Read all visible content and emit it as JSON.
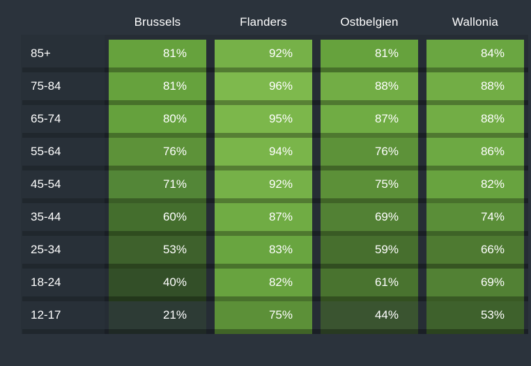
{
  "chart_data": {
    "type": "heatmap",
    "columns": [
      "Brussels",
      "Flanders",
      "Ostbelgien",
      "Wallonia"
    ],
    "categories": [
      "85+",
      "75-84",
      "65-74",
      "55-64",
      "45-54",
      "35-44",
      "25-34",
      "18-24",
      "12-17"
    ],
    "unit": "%",
    "series": [
      {
        "name": "Brussels",
        "values": [
          81,
          81,
          80,
          76,
          71,
          60,
          53,
          40,
          21
        ]
      },
      {
        "name": "Flanders",
        "values": [
          92,
          96,
          95,
          94,
          92,
          87,
          83,
          82,
          75
        ]
      },
      {
        "name": "Ostbelgien",
        "values": [
          81,
          88,
          87,
          76,
          75,
          69,
          59,
          61,
          44
        ]
      },
      {
        "name": "Wallonia",
        "values": [
          84,
          88,
          88,
          86,
          82,
          74,
          66,
          69,
          53
        ]
      }
    ],
    "value_colors": {
      "21": "#2d3b35",
      "40": "#334f28",
      "44": "#3a5430",
      "53": "#3e612c",
      "59": "#476f2e",
      "60": "#446e2d",
      "61": "#49732f",
      "66": "#4e7a31",
      "69": "#528134",
      "71": "#538637",
      "74": "#5a8e38",
      "75": "#5c9038",
      "76": "#5d9239",
      "80": "#65a13d",
      "81": "#66a23d",
      "82": "#68a33f",
      "83": "#69a540",
      "84": "#6aa641",
      "86": "#6da943",
      "87": "#70ac44",
      "88": "#72ad45",
      "92": "#76b148",
      "94": "#7ab54a",
      "95": "#7cb74b",
      "96": "#7eb94d"
    },
    "legend_position": "none",
    "grid": false
  },
  "colors": {
    "page_background": "#2b333c",
    "column_track": "#262d35",
    "cell_text": "#ffffff",
    "header_text": "#ffffff",
    "row_label_text": "#ffffff"
  }
}
